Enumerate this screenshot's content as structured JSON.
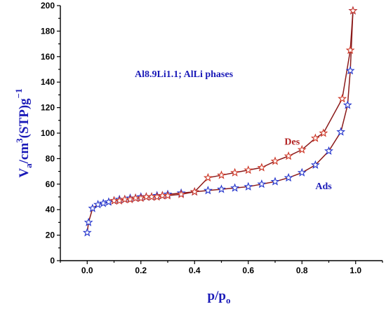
{
  "chart_data": {
    "type": "line",
    "title": "",
    "annotation": "Al8.9Li1.1; AlLi  phases",
    "xlabel": {
      "main": "p/p",
      "sub": "o"
    },
    "ylabel": {
      "v": "V",
      "a": "a",
      "cm": "/cm",
      "three": "3",
      "stp": "(STP)g",
      "neg1": "−1"
    },
    "xlim": [
      -0.1,
      1.1
    ],
    "ylim": [
      0,
      200
    ],
    "xticks": [
      0.0,
      0.2,
      0.4,
      0.6,
      0.8,
      1.0
    ],
    "xtick_labels": [
      "0.0",
      "0.2",
      "0.4",
      "0.6",
      "0.8",
      "1.0"
    ],
    "yticks": [
      0,
      20,
      40,
      60,
      80,
      100,
      120,
      140,
      160,
      180,
      200
    ],
    "ytick_labels": [
      "0",
      "20",
      "40",
      "60",
      "80",
      "100",
      "120",
      "140",
      "160",
      "180",
      "200"
    ],
    "grid": false,
    "series": [
      {
        "name": "Ads",
        "label_at": [
          0.85,
          56
        ],
        "line_color": "#8b1a1a",
        "marker_color": "#2233cc",
        "x": [
          0.0,
          0.005,
          0.02,
          0.04,
          0.06,
          0.08,
          0.1,
          0.12,
          0.14,
          0.16,
          0.18,
          0.2,
          0.22,
          0.24,
          0.26,
          0.28,
          0.3,
          0.35,
          0.4,
          0.45,
          0.5,
          0.55,
          0.6,
          0.65,
          0.7,
          0.75,
          0.8,
          0.85,
          0.9,
          0.945,
          0.97,
          0.98,
          0.99
        ],
        "y": [
          22,
          30,
          41,
          44,
          45,
          46,
          47,
          48,
          48,
          49,
          49,
          50,
          50,
          50,
          51,
          51,
          52,
          53,
          54,
          55,
          56,
          57,
          58,
          60,
          62,
          65,
          69,
          75,
          86,
          101,
          122,
          149,
          196
        ]
      },
      {
        "name": "Des",
        "label_at": [
          0.735,
          91
        ],
        "line_color": "#8b1a1a",
        "marker_color": "#cc3322",
        "x": [
          0.99,
          0.98,
          0.95,
          0.88,
          0.85,
          0.8,
          0.75,
          0.7,
          0.65,
          0.6,
          0.55,
          0.5,
          0.45,
          0.4,
          0.35,
          0.3,
          0.28,
          0.26,
          0.24,
          0.22,
          0.2,
          0.18,
          0.16,
          0.14,
          0.12,
          0.1
        ],
        "y": [
          196,
          165,
          127,
          100,
          96,
          87,
          82,
          78,
          73,
          71,
          69,
          67,
          65,
          54,
          52,
          51,
          51,
          50,
          50,
          50,
          49,
          49,
          48,
          48,
          47,
          47
        ]
      }
    ]
  }
}
